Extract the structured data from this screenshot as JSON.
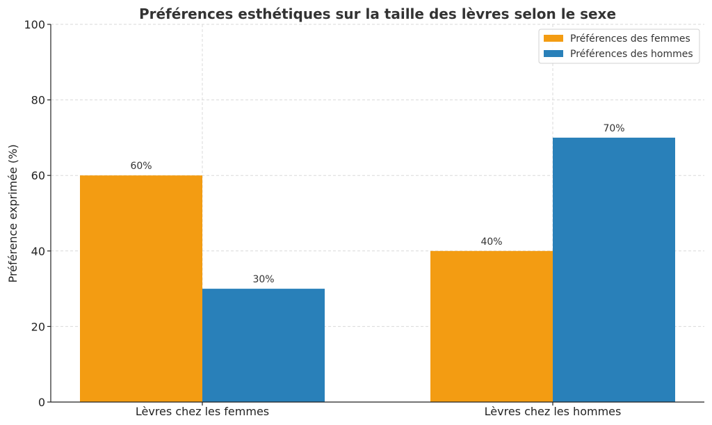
{
  "chart_data": {
    "type": "bar",
    "title": "Préférences esthétiques sur la taille des lèvres selon le sexe",
    "xlabel": "",
    "ylabel": "Préférence exprimée (%)",
    "categories": [
      "Lèvres chez les femmes",
      "Lèvres chez les hommes"
    ],
    "series": [
      {
        "name": "Préférences des femmes",
        "values": [
          60,
          40
        ],
        "labels": [
          "60%",
          "40%"
        ],
        "color": "#f39c12"
      },
      {
        "name": "Préférences des hommes",
        "values": [
          30,
          70
        ],
        "labels": [
          "30%",
          "70%"
        ],
        "color": "#2980b9"
      }
    ],
    "ylim": [
      0,
      100
    ],
    "yticks": [
      0,
      20,
      40,
      60,
      80,
      100
    ],
    "grid": true,
    "legend": "top-right"
  }
}
